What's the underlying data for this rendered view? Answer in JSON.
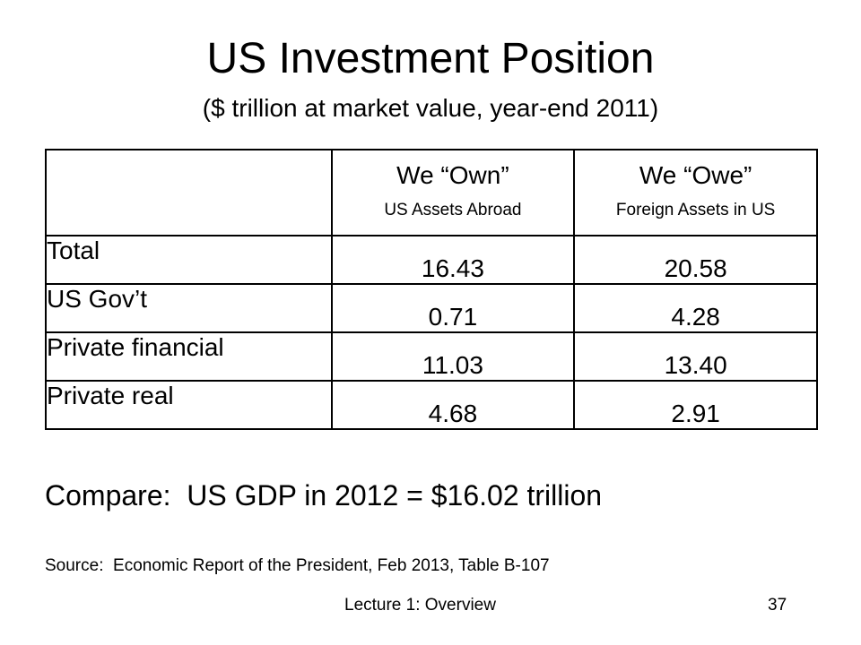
{
  "slide": {
    "title": "US Investment Position",
    "subtitle": "($ trillion at market value, year-end 2011)",
    "table": {
      "columns": [
        {
          "label": "",
          "sublabel": ""
        },
        {
          "label": "We “Own”",
          "sublabel": "US Assets Abroad"
        },
        {
          "label": "We “Owe”",
          "sublabel": "Foreign Assets in US"
        }
      ],
      "rows": [
        {
          "label": "Total",
          "own": "16.43",
          "owe": "20.58"
        },
        {
          "label": "US Gov’t",
          "own": "0.71",
          "owe": "4.28"
        },
        {
          "label": "Private financial",
          "own": "11.03",
          "owe": "13.40"
        },
        {
          "label": "Private real",
          "own": "4.68",
          "owe": "2.91"
        }
      ]
    },
    "compare_text": "Compare:  US GDP in 2012 = $16.02 trillion",
    "source_text": "Source:  Economic Report of the President, Feb 2013, Table B-107",
    "footer": {
      "lecture": "Lecture 1:  Overview",
      "page_number": "37"
    }
  }
}
